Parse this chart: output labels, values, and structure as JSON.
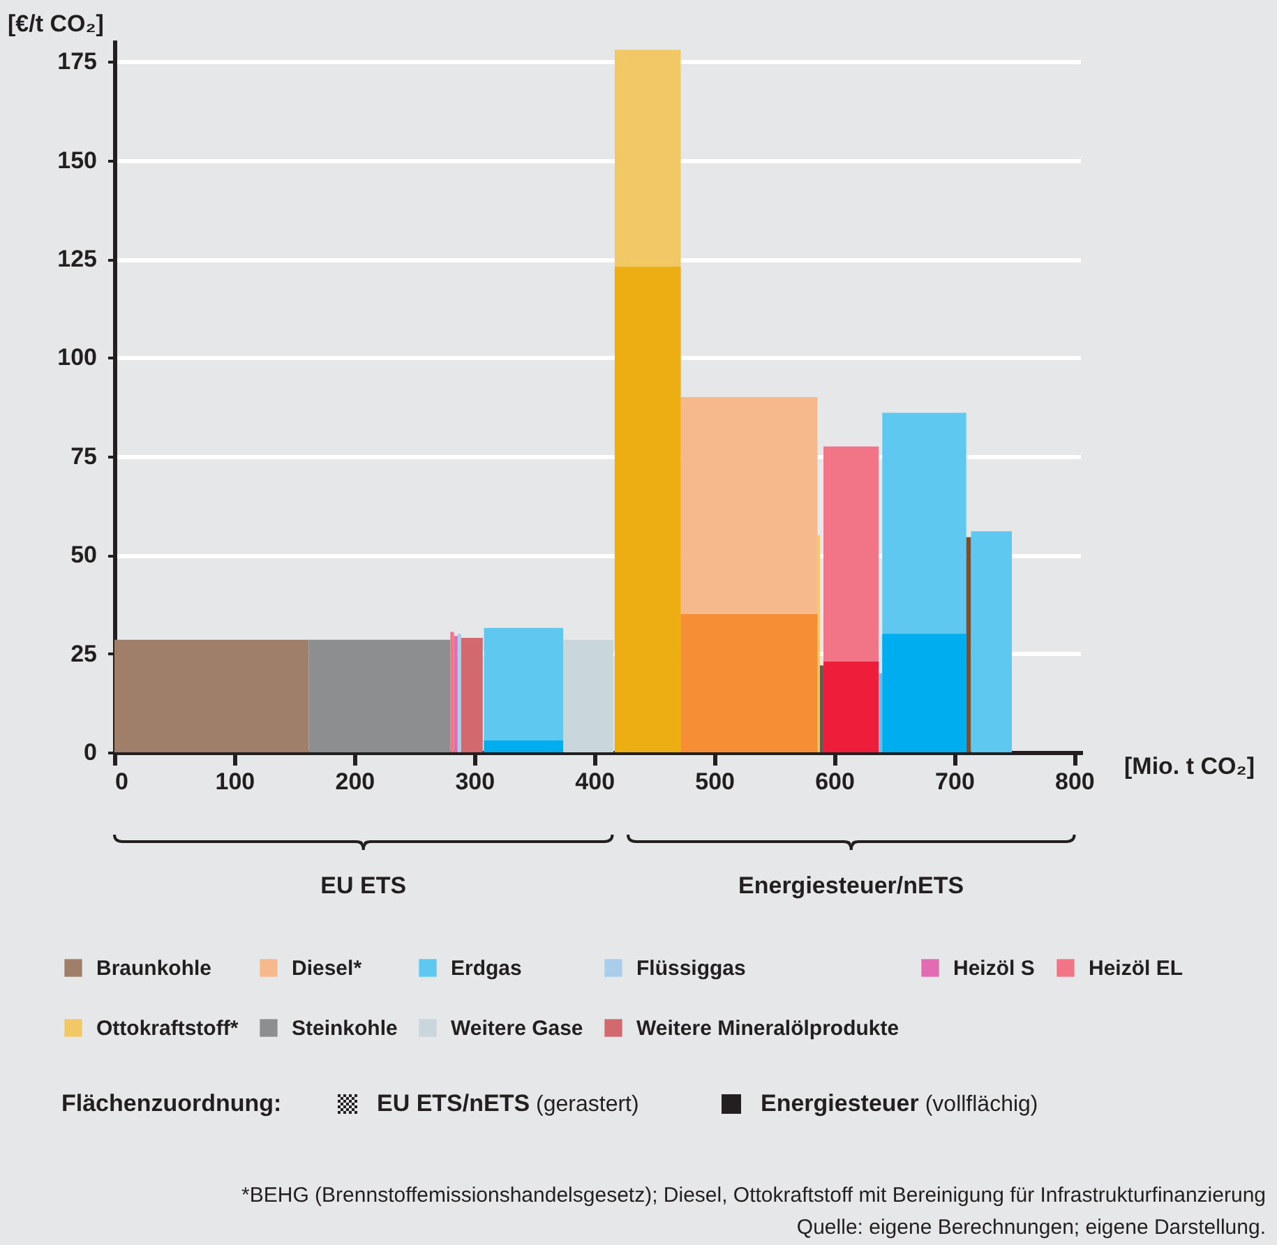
{
  "chart_data": {
    "type": "area",
    "xlabel": "[Mio. t CO₂]",
    "ylabel": "[€/t CO₂]",
    "xlim": [
      0,
      805
    ],
    "xticks": [
      0,
      100,
      200,
      300,
      400,
      500,
      600,
      700,
      800
    ],
    "ylim": [
      0,
      180
    ],
    "yticks": [
      0,
      25,
      50,
      75,
      100,
      125,
      150,
      175
    ],
    "grid": "y",
    "legend": "bottom",
    "series": [
      {
        "name": "Braunkohle",
        "color": "#a07f6a",
        "x": [
          0,
          162
        ],
        "values": [
          28.5,
          28.5
        ]
      },
      {
        "name": "Diesel*",
        "color": "#f6b98c",
        "x": [
          472,
          586
        ],
        "values": [
          90,
          90
        ]
      },
      {
        "name": "Erdgas",
        "color": "#5ec8f1",
        "x": [
          308,
          374
        ],
        "values": [
          31.5,
          31.5
        ]
      },
      {
        "name": "Flüssiggas",
        "color": "#a9cdeb",
        "x": [
          286,
          289
        ],
        "values": [
          30,
          30
        ]
      },
      {
        "name": "Heizöl S",
        "color": "#e36bb2",
        "x": [
          283,
          286
        ],
        "values": [
          29.5,
          29.5
        ]
      },
      {
        "name": "Heizöl EL",
        "color": "#f27487",
        "x": [
          591,
          637
        ],
        "values": [
          77.5,
          77.5
        ]
      },
      {
        "name": "Ottokraftstoff*",
        "color": "#f1c865",
        "x": [
          417,
          472
        ],
        "values": [
          178,
          178
        ]
      },
      {
        "name": "Steinkohle",
        "color": "#8c8e90",
        "x": [
          162,
          280
        ],
        "values": [
          28.5,
          28.5
        ]
      },
      {
        "name": "Weitere Gase",
        "color": "#c9d6dc",
        "x": [
          374,
          416
        ],
        "values": [
          28.5,
          28.5
        ]
      },
      {
        "name": "Weitere Mineralölprodukte",
        "color": "#d2696f",
        "x": [
          289,
          307
        ],
        "values": [
          29,
          29
        ]
      },
      {
        "color": "#f27487",
        "x": [
          280,
          283
        ],
        "values": [
          30.5,
          30.5
        ]
      },
      {
        "color": "#f1c865",
        "x": [
          586,
          588
        ],
        "values": [
          55,
          55
        ]
      },
      {
        "color": "#d5e3ef",
        "x": [
          637,
          640
        ],
        "values": [
          29.5,
          29.5
        ]
      },
      {
        "color": "#5ec8f1",
        "x": [
          640,
          710
        ],
        "values": [
          86,
          86
        ]
      },
      {
        "color": "#7a5030",
        "x": [
          710,
          714
        ],
        "values": [
          54.5,
          54.5
        ]
      },
      {
        "color": "#5ec8f1",
        "x": [
          714,
          748
        ],
        "values": [
          56,
          56
        ]
      },
      {
        "color": "#00aeef",
        "x": [
          308,
          374
        ],
        "values": [
          3,
          3
        ]
      },
      {
        "color": "#edae14",
        "x": [
          417,
          472
        ],
        "values": [
          123,
          123
        ]
      },
      {
        "color": "#f58e35",
        "x": [
          472,
          586
        ],
        "values": [
          35,
          35
        ]
      },
      {
        "color": "#5a5d60",
        "x": [
          588,
          591
        ],
        "values": [
          22,
          22
        ]
      },
      {
        "color": "#ee1d3a",
        "x": [
          591,
          637
        ],
        "values": [
          23,
          23
        ]
      },
      {
        "color": "#79b4e3",
        "x": [
          637,
          640
        ],
        "values": [
          20,
          20
        ]
      },
      {
        "color": "#00aeef",
        "x": [
          640,
          710
        ],
        "values": [
          30,
          30
        ]
      }
    ],
    "annotations": [
      "EU ETS",
      "Energiesteuer/nETS",
      "Flächenzuordnung:",
      "EU ETS/nETS (gerastert)",
      "Energiesteuer (vollflächig)",
      "*BEHG (Brennstoffemissionshandelsgesetz); Diesel, Ottokraftstoff mit Bereinigung für Infrastrukturfinanzierung",
      "Quelle: eigene Berechnungen; eigene Darstellung."
    ]
  }
}
